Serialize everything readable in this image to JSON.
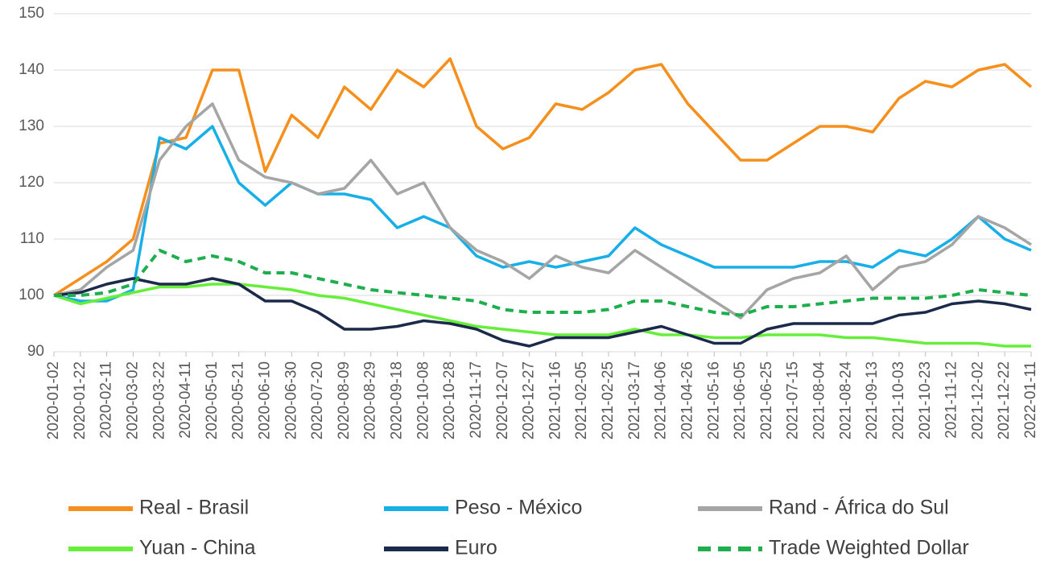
{
  "chart_data": {
    "type": "line",
    "x": [
      "2020-01-02",
      "2020-01-22",
      "2020-02-11",
      "2020-03-02",
      "2020-03-22",
      "2020-04-11",
      "2020-05-01",
      "2020-05-21",
      "2020-06-10",
      "2020-06-30",
      "2020-07-20",
      "2020-08-09",
      "2020-08-29",
      "2020-09-18",
      "2020-10-08",
      "2020-10-28",
      "2020-11-17",
      "2020-12-07",
      "2020-12-27",
      "2021-01-16",
      "2021-02-05",
      "2021-02-25",
      "2021-03-17",
      "2021-04-06",
      "2021-04-26",
      "2021-05-16",
      "2021-06-05",
      "2021-06-25",
      "2021-07-15",
      "2021-08-04",
      "2021-08-24",
      "2021-09-13",
      "2021-10-03",
      "2021-10-23",
      "2021-11-12",
      "2021-12-02",
      "2021-12-22",
      "2022-01-11"
    ],
    "series": [
      {
        "name": "Real - Brasil",
        "color": "#f5901e",
        "style": "solid",
        "values": [
          100,
          103,
          106,
          110,
          127,
          128,
          140,
          140,
          122,
          132,
          128,
          137,
          133,
          140,
          137,
          142,
          130,
          126,
          128,
          134,
          133,
          136,
          140,
          141,
          134,
          129,
          124,
          124,
          127,
          130,
          130,
          129,
          135,
          138,
          137,
          140,
          141,
          137
        ]
      },
      {
        "name": "Peso - México",
        "color": "#18afe8",
        "style": "solid",
        "values": [
          100,
          99,
          99,
          101,
          128,
          126,
          130,
          120,
          116,
          120,
          118,
          118,
          117,
          112,
          114,
          112,
          107,
          105,
          106,
          105,
          106,
          107,
          112,
          109,
          107,
          105,
          105,
          105,
          105,
          106,
          106,
          105,
          108,
          107,
          110,
          114,
          110,
          108
        ]
      },
      {
        "name": "Rand - África do Sul",
        "color": "#a5a5a5",
        "style": "solid",
        "values": [
          100,
          101,
          105,
          108,
          124,
          130,
          134,
          124,
          121,
          120,
          118,
          119,
          124,
          118,
          120,
          112,
          108,
          106,
          103,
          107,
          105,
          104,
          108,
          105,
          102,
          99,
          96,
          101,
          103,
          104,
          107,
          101,
          105,
          106,
          109,
          114,
          112,
          109
        ]
      },
      {
        "name": "Yuan - China",
        "color": "#66ee3a",
        "style": "solid",
        "values": [
          100,
          98.5,
          99.5,
          100.5,
          101.5,
          101.5,
          102,
          102,
          101.5,
          101,
          100,
          99.5,
          98.5,
          97.5,
          96.5,
          95.5,
          94.5,
          94,
          93.5,
          93,
          93,
          93,
          94,
          93,
          93,
          92.5,
          92.5,
          93,
          93,
          93,
          92.5,
          92.5,
          92,
          91.5,
          91.5,
          91.5,
          91,
          91
        ]
      },
      {
        "name": "Euro",
        "color": "#1b2a4a",
        "style": "solid",
        "values": [
          100,
          100.5,
          102,
          103,
          102,
          102,
          103,
          102,
          99,
          99,
          97,
          94,
          94,
          94.5,
          95.5,
          95,
          94,
          92,
          91,
          92.5,
          92.5,
          92.5,
          93.5,
          94.5,
          93,
          91.5,
          91.5,
          94,
          95,
          95,
          95,
          95,
          96.5,
          97,
          98.5,
          99,
          98.5,
          97.5
        ]
      },
      {
        "name": "Trade Weighted Dollar",
        "color": "#1fae4e",
        "style": "dashed",
        "values": [
          100,
          100,
          100.5,
          102,
          108,
          106,
          107,
          106,
          104,
          104,
          103,
          102,
          101,
          100.5,
          100,
          99.5,
          99,
          97.5,
          97,
          97,
          97,
          97.5,
          99,
          99,
          98,
          97,
          96.5,
          98,
          98,
          98.5,
          99,
          99.5,
          99.5,
          99.5,
          100,
          101,
          100.5,
          100
        ]
      }
    ],
    "ylim": [
      90,
      150
    ],
    "yticks": [
      90,
      100,
      110,
      120,
      130,
      140,
      150
    ],
    "grid": true,
    "legend": "bottom"
  }
}
